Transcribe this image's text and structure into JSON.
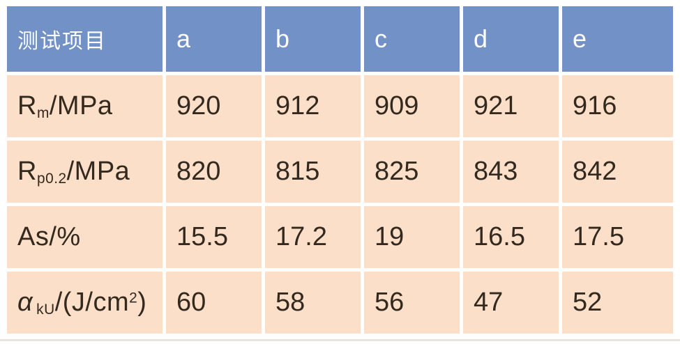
{
  "table": {
    "title_cell": "测试项目",
    "columns": [
      "a",
      "b",
      "c",
      "d",
      "e"
    ],
    "rows": [
      {
        "label": {
          "pre": "R",
          "sub": "m",
          "post": "/MPa"
        },
        "values": [
          "920",
          "912",
          "909",
          "921",
          "916"
        ]
      },
      {
        "label": {
          "pre": "R",
          "sub": "p0.2",
          "post": "/MPa"
        },
        "values": [
          "820",
          "815",
          "825",
          "843",
          "842"
        ]
      },
      {
        "label": {
          "pre": "As/%"
        },
        "values": [
          "15.5",
          "17.2",
          "19",
          "16.5",
          "17.5"
        ]
      },
      {
        "label": {
          "pre": "α",
          "sub": "kU",
          "post": "/(J/cm",
          "sup": "2",
          "close": ")"
        },
        "values": [
          "60",
          "58",
          "56",
          "47",
          "52"
        ]
      }
    ],
    "colors": {
      "header_bg": "#7291c6",
      "header_text": "#ffffff",
      "row_bg": "#fbdfc8",
      "body_text": "#33291e",
      "gutter": "#ffffff"
    }
  }
}
